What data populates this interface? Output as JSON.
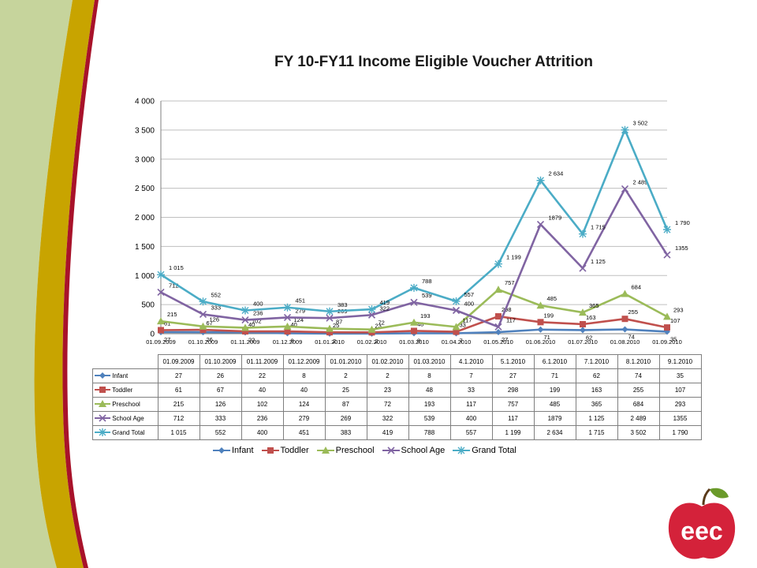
{
  "slide": {
    "logo_text": "eec",
    "colors": {
      "panel_green": "#c6d49c",
      "stripe_gold": "#c8a400",
      "stripe_red": "#a8122a",
      "logo_red": "#d4223a",
      "logo_leaf": "#6a9a2a"
    }
  },
  "chart_data": {
    "type": "line",
    "title": "FY 10-FY11  Income Eligible Voucher Attrition",
    "xlabel": "",
    "ylabel": "",
    "ylim": [
      0,
      4000
    ],
    "yticks": [
      "0",
      "500",
      "1 000",
      "1 500",
      "2 000",
      "2 500",
      "3 000",
      "3 500",
      "4 000"
    ],
    "grid": "horizontal",
    "legend_position": "bottom",
    "categories": [
      "01.09.2009",
      "01.10.2009",
      "01.11.2009",
      "01.12.2009",
      "01.01.2010",
      "01.02.2010",
      "01.03.2010",
      "01.04.2010",
      "01.05.2010",
      "01.06.2010",
      "01.07.2010",
      "01.08.2010",
      "01.09.2010"
    ],
    "table_headers": [
      "01.09.2009",
      "01.10.2009",
      "01.11.2009",
      "01.12.2009",
      "01.01.2010",
      "01.02.2010",
      "01.03.2010",
      "4.1.2010",
      "5.1.2010",
      "6.1.2010",
      "7.1.2010",
      "8.1.2010",
      "9.1.2010"
    ],
    "series": [
      {
        "name": "Infant",
        "color": "#4f81bd",
        "marker": "diamond",
        "values": [
          27,
          26,
          22,
          8,
          2,
          2,
          8,
          7,
          27,
          71,
          62,
          74,
          35
        ],
        "table_values": [
          "27",
          "26",
          "22",
          "8",
          "2",
          "2",
          "8",
          "7",
          "27",
          "71",
          "62",
          "74",
          "35"
        ],
        "point_labels": [
          "27",
          "26",
          "22",
          "8",
          "2",
          "2",
          "8",
          "7",
          "27",
          "71",
          "62",
          "74",
          "35"
        ]
      },
      {
        "name": "Toddler",
        "color": "#c0504d",
        "marker": "square",
        "values": [
          61,
          67,
          40,
          40,
          25,
          23,
          48,
          33,
          298,
          199,
          163,
          255,
          107
        ],
        "table_values": [
          "61",
          "67",
          "40",
          "40",
          "25",
          "23",
          "48",
          "33",
          "298",
          "199",
          "163",
          "255",
          "107"
        ],
        "point_labels": [
          "61",
          "67",
          "40",
          "40",
          "25",
          "23",
          "48",
          "33",
          "298",
          "199",
          "163",
          "255",
          "107"
        ]
      },
      {
        "name": "Preschool",
        "color": "#9bbb59",
        "marker": "triangle",
        "values": [
          215,
          126,
          102,
          124,
          87,
          72,
          193,
          117,
          757,
          485,
          365,
          684,
          293
        ],
        "table_values": [
          "215",
          "126",
          "102",
          "124",
          "87",
          "72",
          "193",
          "117",
          "757",
          "485",
          "365",
          "684",
          "293"
        ],
        "point_labels": [
          "215",
          "126",
          "102",
          "124",
          "87",
          "72",
          "193",
          "117",
          "757",
          "485",
          "365",
          "684",
          "293"
        ]
      },
      {
        "name": "School Age",
        "color": "#8064a2",
        "marker": "x",
        "values": [
          712,
          333,
          236,
          279,
          269,
          322,
          539,
          400,
          117,
          1879,
          1125,
          2489,
          1355
        ],
        "table_values": [
          "712",
          "333",
          "236",
          "279",
          "269",
          "322",
          "539",
          "400",
          "117",
          "1879",
          "1 125",
          "2 489",
          "1355"
        ],
        "point_labels": [
          "712",
          "333",
          "236",
          "279",
          "269",
          "322",
          "539",
          "400",
          "117",
          "1879",
          "1 125",
          "2 489",
          "1355"
        ]
      },
      {
        "name": "Grand Total",
        "color": "#4bacc6",
        "marker": "star",
        "values": [
          1015,
          552,
          400,
          451,
          383,
          419,
          788,
          557,
          1199,
          2634,
          1715,
          3502,
          1790
        ],
        "table_values": [
          "1 015",
          "552",
          "400",
          "451",
          "383",
          "419",
          "788",
          "557",
          "1 199",
          "2 634",
          "1 715",
          "3 502",
          "1 790"
        ],
        "point_labels": [
          "1 015",
          "552",
          "400",
          "451",
          "383",
          "419",
          "788",
          "557",
          "1 199",
          "2 634",
          "1 715",
          "3 502",
          "1 790"
        ]
      }
    ]
  }
}
